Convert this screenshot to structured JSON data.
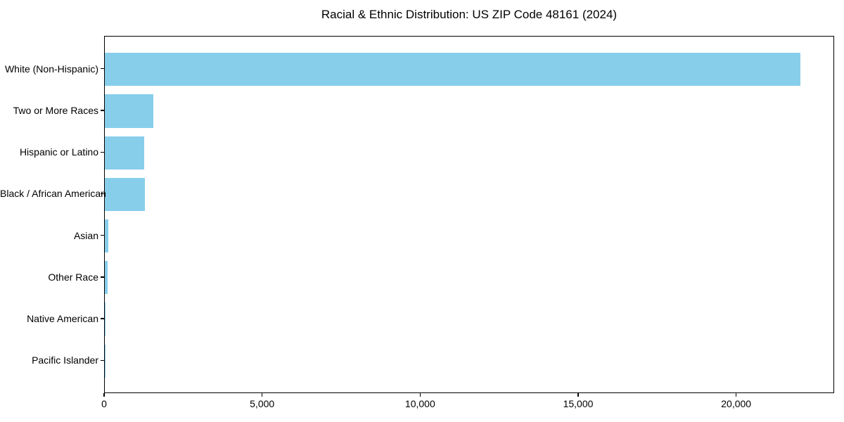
{
  "chart_data": {
    "type": "bar",
    "orientation": "horizontal",
    "title": "Racial & Ethnic Distribution: US ZIP Code 48161 (2024)",
    "categories": [
      "White (Non-Hispanic)",
      "Two or More Races",
      "Hispanic or Latino",
      "Black / African American",
      "Asian",
      "Other Race",
      "Native American",
      "Pacific Islander"
    ],
    "values": [
      22000,
      1530,
      1240,
      1270,
      105,
      80,
      20,
      5
    ],
    "xlabel": "",
    "ylabel": "",
    "xlim": [
      0,
      23100
    ],
    "xticks": [
      0,
      5000,
      10000,
      15000,
      20000
    ],
    "xtick_labels": [
      "0",
      "5,000",
      "10,000",
      "15,000",
      "20,000"
    ],
    "bar_color": "#87CEEB",
    "axis_color": "#000000",
    "background_color": "#FFFFFF",
    "grid": false,
    "legend": "none"
  }
}
